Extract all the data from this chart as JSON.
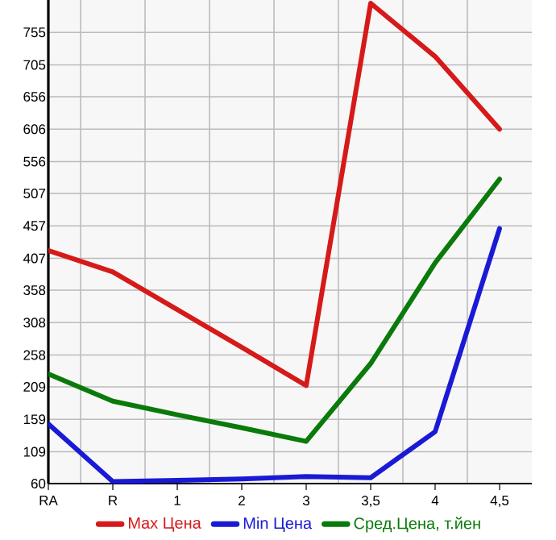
{
  "chart_data": {
    "type": "line",
    "categories": [
      "RA",
      "R",
      "1",
      "2",
      "3",
      "3,5",
      "4",
      "4,5"
    ],
    "series": [
      {
        "name": "Max Цена",
        "color": "#d61a1a",
        "values": [
          419,
          386,
          328,
          270,
          211,
          800,
          718,
          606
        ]
      },
      {
        "name": "Min Цена",
        "color": "#1a1ad6",
        "values": [
          152,
          63,
          65,
          67,
          71,
          69,
          140,
          453
        ]
      },
      {
        "name": "Сред.Цена, т.йен",
        "color": "#0a7a0a",
        "values": [
          229,
          187,
          166,
          146,
          125,
          245,
          400,
          529
        ]
      }
    ],
    "ylim": [
      60,
      805
    ],
    "yticks": [
      60,
      109,
      159,
      209,
      258,
      308,
      358,
      407,
      457,
      507,
      556,
      606,
      656,
      705,
      755
    ],
    "grid": true,
    "legend": "bottom",
    "marker": "none",
    "line_style": "solid"
  }
}
